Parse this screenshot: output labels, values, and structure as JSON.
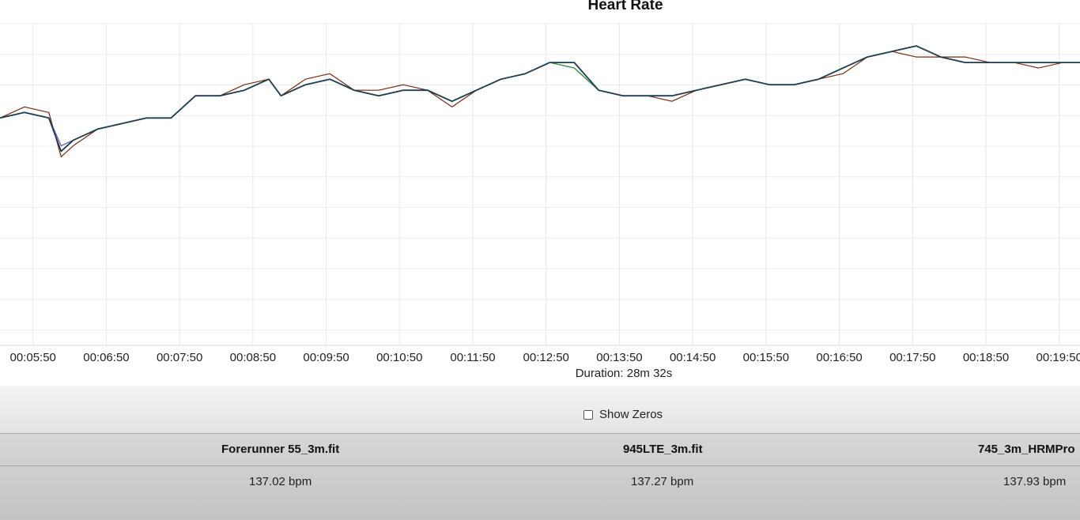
{
  "chart_data": {
    "type": "line",
    "title": "Heart Rate",
    "xlabel": "Duration: 28m 32s",
    "ylabel": "",
    "grid": true,
    "y_tick_labels_visible": false,
    "x_ticks": [
      "00:05:50",
      "00:06:50",
      "00:07:50",
      "00:08:50",
      "00:09:50",
      "00:10:50",
      "00:11:50",
      "00:12:50",
      "00:13:50",
      "00:14:50",
      "00:15:50",
      "00:16:50",
      "00:17:50",
      "00:18:50",
      "00:19:50"
    ],
    "xlim": [
      "00:05:23",
      "00:20:07"
    ],
    "ylim": [
      100,
      158
    ],
    "x": [
      "00:05:23",
      "00:05:43",
      "00:06:03",
      "00:06:13",
      "00:06:23",
      "00:06:43",
      "00:07:03",
      "00:07:23",
      "00:07:43",
      "00:08:03",
      "00:08:23",
      "00:08:43",
      "00:09:03",
      "00:09:13",
      "00:09:33",
      "00:09:53",
      "00:10:13",
      "00:10:33",
      "00:10:53",
      "00:11:13",
      "00:11:33",
      "00:11:53",
      "00:12:13",
      "00:12:33",
      "00:12:53",
      "00:13:13",
      "00:13:33",
      "00:13:53",
      "00:14:13",
      "00:14:33",
      "00:14:53",
      "00:15:13",
      "00:15:33",
      "00:15:53",
      "00:16:13",
      "00:16:33",
      "00:16:53",
      "00:17:13",
      "00:17:33",
      "00:17:53",
      "00:18:13",
      "00:18:33",
      "00:18:53",
      "00:19:13",
      "00:19:33",
      "00:19:53",
      "00:20:07"
    ],
    "series": [
      {
        "name": "Forerunner 55_3m.fit",
        "color": "#7a2a10",
        "values": [
          141,
          143,
          142,
          134,
          136,
          139,
          140,
          141,
          141,
          145,
          145,
          147,
          148,
          145,
          148,
          149,
          146,
          146,
          147,
          146,
          143,
          146,
          148,
          149,
          151,
          150,
          146,
          145,
          145,
          144,
          146,
          147,
          148,
          147,
          147,
          148,
          149,
          152,
          153,
          152,
          152,
          152,
          151,
          151,
          150,
          151,
          151
        ]
      },
      {
        "name": "945LTE_3m.fit",
        "color": "#5b4fc4",
        "values": [
          141,
          142,
          141,
          136,
          137,
          139,
          140,
          141,
          141,
          145,
          145,
          146,
          148,
          145,
          147,
          148,
          146,
          145,
          146,
          146,
          144,
          146,
          148,
          149,
          151,
          150,
          146,
          145,
          145,
          145,
          146,
          147,
          148,
          147,
          147,
          148,
          150,
          152,
          153,
          154,
          152,
          151,
          151,
          151,
          151,
          151,
          151
        ]
      },
      {
        "name": "745_3m_HRMPro",
        "color": "#2f9e3a",
        "values": [
          141,
          142,
          141,
          135,
          137,
          139,
          140,
          141,
          141,
          145,
          145,
          146,
          148,
          145,
          147,
          148,
          146,
          145,
          146,
          146,
          144,
          146,
          148,
          149,
          151,
          150,
          146,
          145,
          145,
          145,
          146,
          147,
          148,
          147,
          147,
          148,
          150,
          152,
          153,
          154,
          152,
          151,
          151,
          151,
          151,
          151,
          151
        ]
      },
      {
        "name": "",
        "color": "#1c3d4e",
        "values": [
          141,
          142,
          141,
          135,
          137,
          139,
          140,
          141,
          141,
          145,
          145,
          146,
          148,
          145,
          147,
          148,
          146,
          145,
          146,
          146,
          144,
          146,
          148,
          149,
          151,
          151,
          146,
          145,
          145,
          145,
          146,
          147,
          148,
          147,
          147,
          148,
          150,
          152,
          153,
          154,
          152,
          151,
          151,
          151,
          151,
          151,
          151
        ]
      }
    ]
  },
  "controls": {
    "show_zeros_label": "Show Zeros",
    "show_zeros_checked": false
  },
  "table": {
    "headers": [
      "Forerunner 55_3m.fit",
      "945LTE_3m.fit",
      "745_3m_HRMPro"
    ],
    "values": [
      "137.02 bpm",
      "137.27 bpm",
      "137.93 bpm"
    ]
  }
}
